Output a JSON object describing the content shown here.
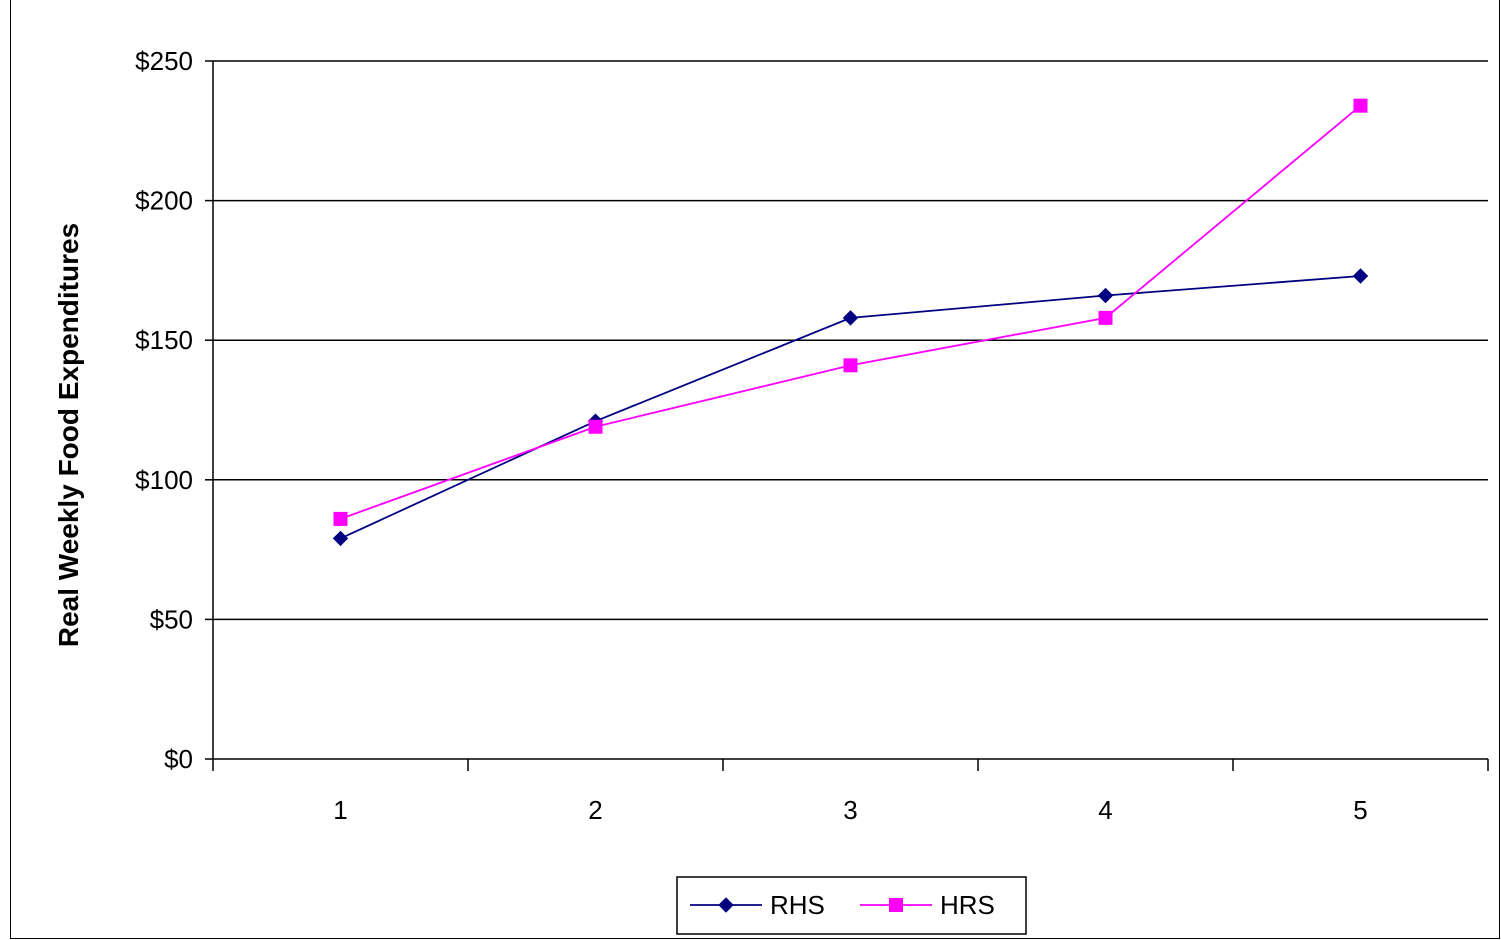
{
  "chart_data": {
    "type": "line",
    "title": "",
    "xlabel": "",
    "ylabel": "Real Weekly Food Expenditures",
    "x": [
      "1",
      "2",
      "3",
      "4",
      "5"
    ],
    "ylim": [
      0,
      250
    ],
    "y_ticks": [
      {
        "value": 0,
        "label": "$0"
      },
      {
        "value": 50,
        "label": "$50"
      },
      {
        "value": 100,
        "label": "$100"
      },
      {
        "value": 150,
        "label": "$150"
      },
      {
        "value": 200,
        "label": "$200"
      },
      {
        "value": 250,
        "label": "$250"
      }
    ],
    "grid": true,
    "legend_position": "bottom",
    "series": [
      {
        "name": "RHS",
        "values": [
          79,
          121,
          158,
          166,
          173
        ],
        "color": "#000080",
        "marker": "diamond"
      },
      {
        "name": "HRS",
        "values": [
          86,
          119,
          141,
          158,
          234
        ],
        "color": "#ff00ff",
        "marker": "square"
      }
    ]
  }
}
